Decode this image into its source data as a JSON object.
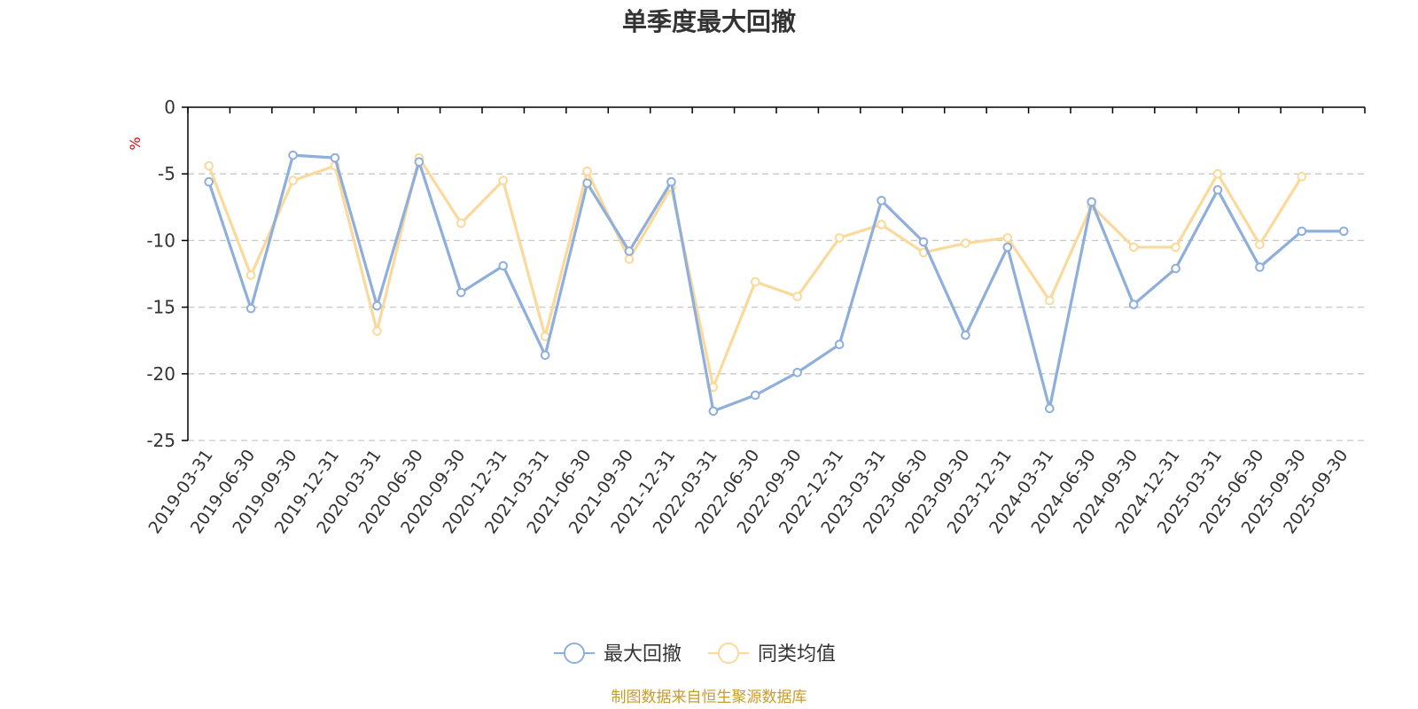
{
  "chart_data": {
    "type": "line",
    "title": "单季度最大回撤",
    "ylabel": "%",
    "ylim": [
      -25,
      0
    ],
    "yticks": [
      0,
      -5,
      -10,
      -15,
      -20,
      -25
    ],
    "grid": true,
    "legend_position": "bottom-center",
    "categories": [
      "2019-03-31",
      "2019-06-30",
      "2019-09-30",
      "2019-12-31",
      "2020-03-31",
      "2020-06-30",
      "2020-09-30",
      "2020-12-31",
      "2021-03-31",
      "2021-06-30",
      "2021-09-30",
      "2021-12-31",
      "2022-03-31",
      "2022-06-30",
      "2022-09-30",
      "2022-12-31",
      "2023-03-31",
      "2023-06-30",
      "2023-09-30",
      "2023-12-31",
      "2024-03-31",
      "2024-06-30",
      "2024-09-30",
      "2024-12-31",
      "2025-03-31",
      "2025-06-30",
      "2025-09-30",
      "2025-09-30"
    ],
    "series": [
      {
        "name": "最大回撤",
        "color": "#8eaedc",
        "values": [
          -5.6,
          -15.1,
          -3.6,
          -3.8,
          -14.9,
          -4.1,
          -13.9,
          -11.9,
          -18.6,
          -5.7,
          -10.8,
          -5.6,
          -22.8,
          -21.6,
          -19.9,
          -17.8,
          -7.0,
          -10.1,
          -17.1,
          -10.5,
          -22.6,
          -7.1,
          -14.8,
          -12.1,
          -6.2,
          -12.0,
          -9.3,
          -9.3
        ]
      },
      {
        "name": "同类均值",
        "color": "#fbd99b",
        "values": [
          -4.4,
          -12.6,
          -5.5,
          -4.4,
          -16.8,
          -3.8,
          -8.7,
          -5.5,
          -17.2,
          -4.8,
          -11.4,
          -6.0,
          -21.0,
          -13.1,
          -14.2,
          -9.8,
          -8.8,
          -10.9,
          -10.2,
          -9.8,
          -14.5,
          -7.4,
          -10.5,
          -10.5,
          -5.0,
          -10.3,
          -5.2,
          null
        ]
      }
    ]
  },
  "source_note": "制图数据来自恒生聚源数据库"
}
